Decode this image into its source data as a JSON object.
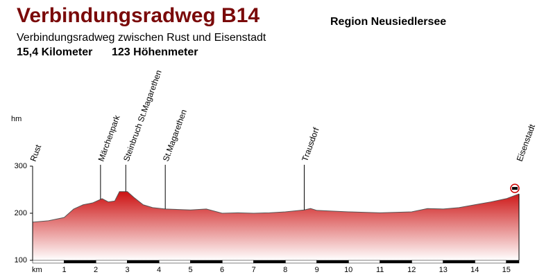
{
  "chart_data": {
    "type": "area",
    "title": "Verbindungsradweg B14",
    "region": "Region Neusiedlersee",
    "subtitle": "Verbindungsradweg zwischen Rust und Eisenstadt",
    "distance": "15,4 Kilometer",
    "climb": "123 Höhenmeter",
    "x_label": "km",
    "y_label": "hm",
    "x": [
      0,
      0.5,
      1,
      1.3,
      1.6,
      1.9,
      2.2,
      2.4,
      2.6,
      2.75,
      3.0,
      3.2,
      3.5,
      3.8,
      4.2,
      5,
      5.5,
      6,
      6.5,
      7,
      7.5,
      8,
      8.6,
      8.8,
      9,
      10,
      11,
      12,
      12.5,
      13,
      13.5,
      14,
      14.5,
      15,
      15.4
    ],
    "values": [
      181,
      184,
      191,
      209,
      218,
      222,
      231,
      224,
      226,
      246,
      246,
      234,
      218,
      212,
      209,
      207,
      209,
      200,
      201,
      200,
      201,
      203,
      207,
      210,
      206,
      203,
      201,
      203,
      210,
      209,
      212,
      218,
      224,
      231,
      241
    ],
    "color": "#cc1111",
    "xlim": [
      0,
      15.4
    ],
    "ylim": [
      100,
      300
    ],
    "xticks": [
      1,
      2,
      3,
      4,
      5,
      6,
      7,
      8,
      9,
      10,
      11,
      12,
      13,
      14,
      15
    ],
    "yticks": [
      100,
      200,
      300
    ],
    "waypoints": [
      {
        "name": "Rust",
        "km": 0
      },
      {
        "name": "Märchenpark",
        "km": 2.15
      },
      {
        "name": "Steinbruch St.Magarethen",
        "km": 2.95
      },
      {
        "name": "St.Magarethen",
        "km": 4.2
      },
      {
        "name": "Trausdorf",
        "km": 8.6
      },
      {
        "name": "Eisenstadt",
        "km": 15.4
      }
    ]
  }
}
